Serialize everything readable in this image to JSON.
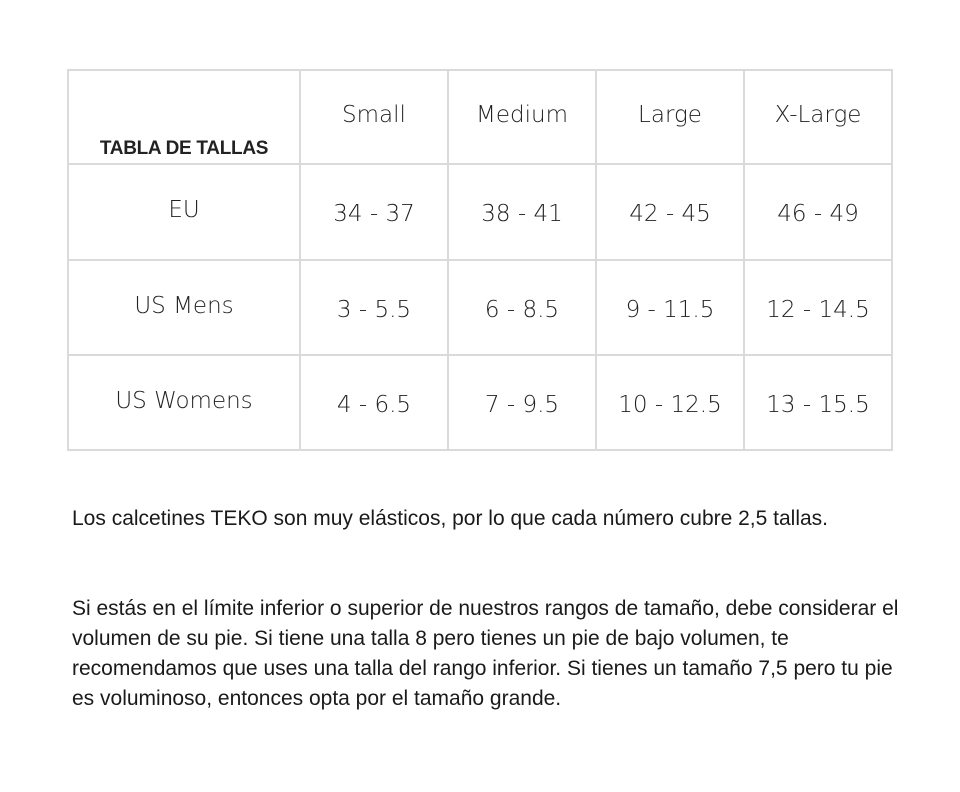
{
  "table": {
    "title": "TABLA DE TALLAS",
    "columns": [
      "Small",
      "Medium",
      "Large",
      "X-Large"
    ],
    "rows": [
      {
        "label": "EU",
        "values": [
          "34 - 37",
          "38 - 41",
          "42 - 45",
          "46 - 49"
        ]
      },
      {
        "label": "US Mens",
        "values": [
          "3 - 5.5",
          "6 - 8.5",
          "9 - 11.5",
          "12 - 14.5"
        ]
      },
      {
        "label": "US Womens",
        "values": [
          "4 - 6.5",
          "7 - 9.5",
          "10 - 12.5",
          "13 - 15.5"
        ]
      }
    ]
  },
  "paragraphs": [
    "Los calcetines TEKO son muy elásticos, por lo que cada número cubre 2,5 tallas.",
    "Si estás en el límite inferior o superior de nuestros rangos de tamaño, debe considerar el volumen de su pie. Si tiene una talla 8 pero tienes un pie de bajo volumen, te recomendamos que uses una talla del rango inferior. Si tienes un tamaño 7,5 pero tu pie es voluminoso, entonces opta por el tamaño grande."
  ]
}
